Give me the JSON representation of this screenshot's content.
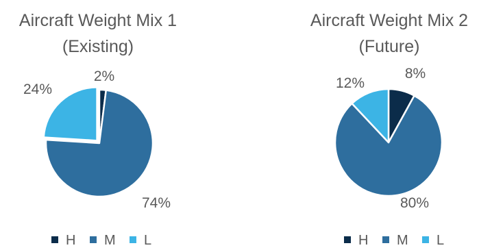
{
  "chart_data": [
    {
      "type": "pie",
      "title": [
        "Aircraft Weight Mix 1",
        "(Existing)"
      ],
      "categories": [
        "H",
        "M",
        "L"
      ],
      "values": [
        2,
        74,
        24
      ],
      "labels": [
        "2%",
        "74%",
        "24%"
      ],
      "colors": [
        "#0b2c4a",
        "#2e6e9e",
        "#3cb4e5"
      ],
      "exploded": "L",
      "legend": "bottom"
    },
    {
      "type": "pie",
      "title": [
        "Aircraft Weight Mix 2",
        "(Future)"
      ],
      "categories": [
        "H",
        "M",
        "L"
      ],
      "values": [
        8,
        80,
        12
      ],
      "labels": [
        "8%",
        "80%",
        "12%"
      ],
      "colors": [
        "#0b2c4a",
        "#2e6e9e",
        "#3cb4e5"
      ],
      "legend": "bottom"
    }
  ]
}
